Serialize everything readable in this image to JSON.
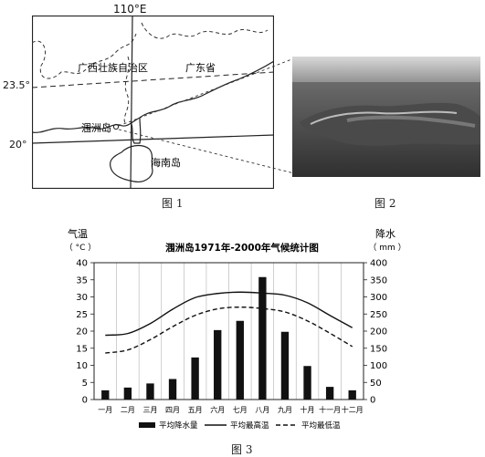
{
  "figure1": {
    "caption": "图 1",
    "longitude_label": "110°E",
    "lat_labels": [
      "23.5°",
      "20°"
    ],
    "places": {
      "guangxi": "广西壮族自治区",
      "guangdong": "广东省",
      "weizhou": "涠洲岛",
      "hainan": "海南岛"
    }
  },
  "figure2": {
    "caption": "图 2"
  },
  "figure3": {
    "caption": "图 3",
    "left_axis_title": "气温",
    "left_axis_unit": "（ °C ）",
    "right_axis_title": "降水",
    "right_axis_unit": "（ mm ）",
    "legend": [
      "平均降水量",
      "平均最高温",
      "平均最低温"
    ]
  },
  "chart_data": {
    "type": "bar+line",
    "title": "涠洲岛1971年-2000年气候统计图",
    "categories": [
      "一月",
      "二月",
      "三月",
      "四月",
      "五月",
      "六月",
      "七月",
      "八月",
      "九月",
      "十月",
      "十一月",
      "十二月"
    ],
    "y_left": {
      "range": [
        0,
        40
      ],
      "ticks": [
        0,
        5,
        10,
        15,
        20,
        25,
        30,
        35,
        40
      ]
    },
    "y_right": {
      "range": [
        0,
        400
      ],
      "ticks": [
        0,
        50,
        100,
        150,
        200,
        250,
        300,
        350,
        400
      ]
    },
    "series": [
      {
        "name": "平均降水量",
        "type": "bar",
        "axis": "right",
        "values": [
          27,
          35,
          47,
          60,
          123,
          203,
          230,
          358,
          198,
          98,
          37,
          27
        ]
      },
      {
        "name": "平均最高温",
        "type": "line",
        "axis": "left",
        "style": "solid",
        "values": [
          18.8,
          19.3,
          22.2,
          26.4,
          29.8,
          31.0,
          31.4,
          31.1,
          30.5,
          28.3,
          24.6,
          21.0
        ]
      },
      {
        "name": "平均最低温",
        "type": "line",
        "axis": "left",
        "style": "dashed",
        "values": [
          13.6,
          14.5,
          17.5,
          21.3,
          24.6,
          26.5,
          27.0,
          26.6,
          25.6,
          23.0,
          19.4,
          15.5
        ]
      }
    ],
    "grid": "vertical"
  }
}
